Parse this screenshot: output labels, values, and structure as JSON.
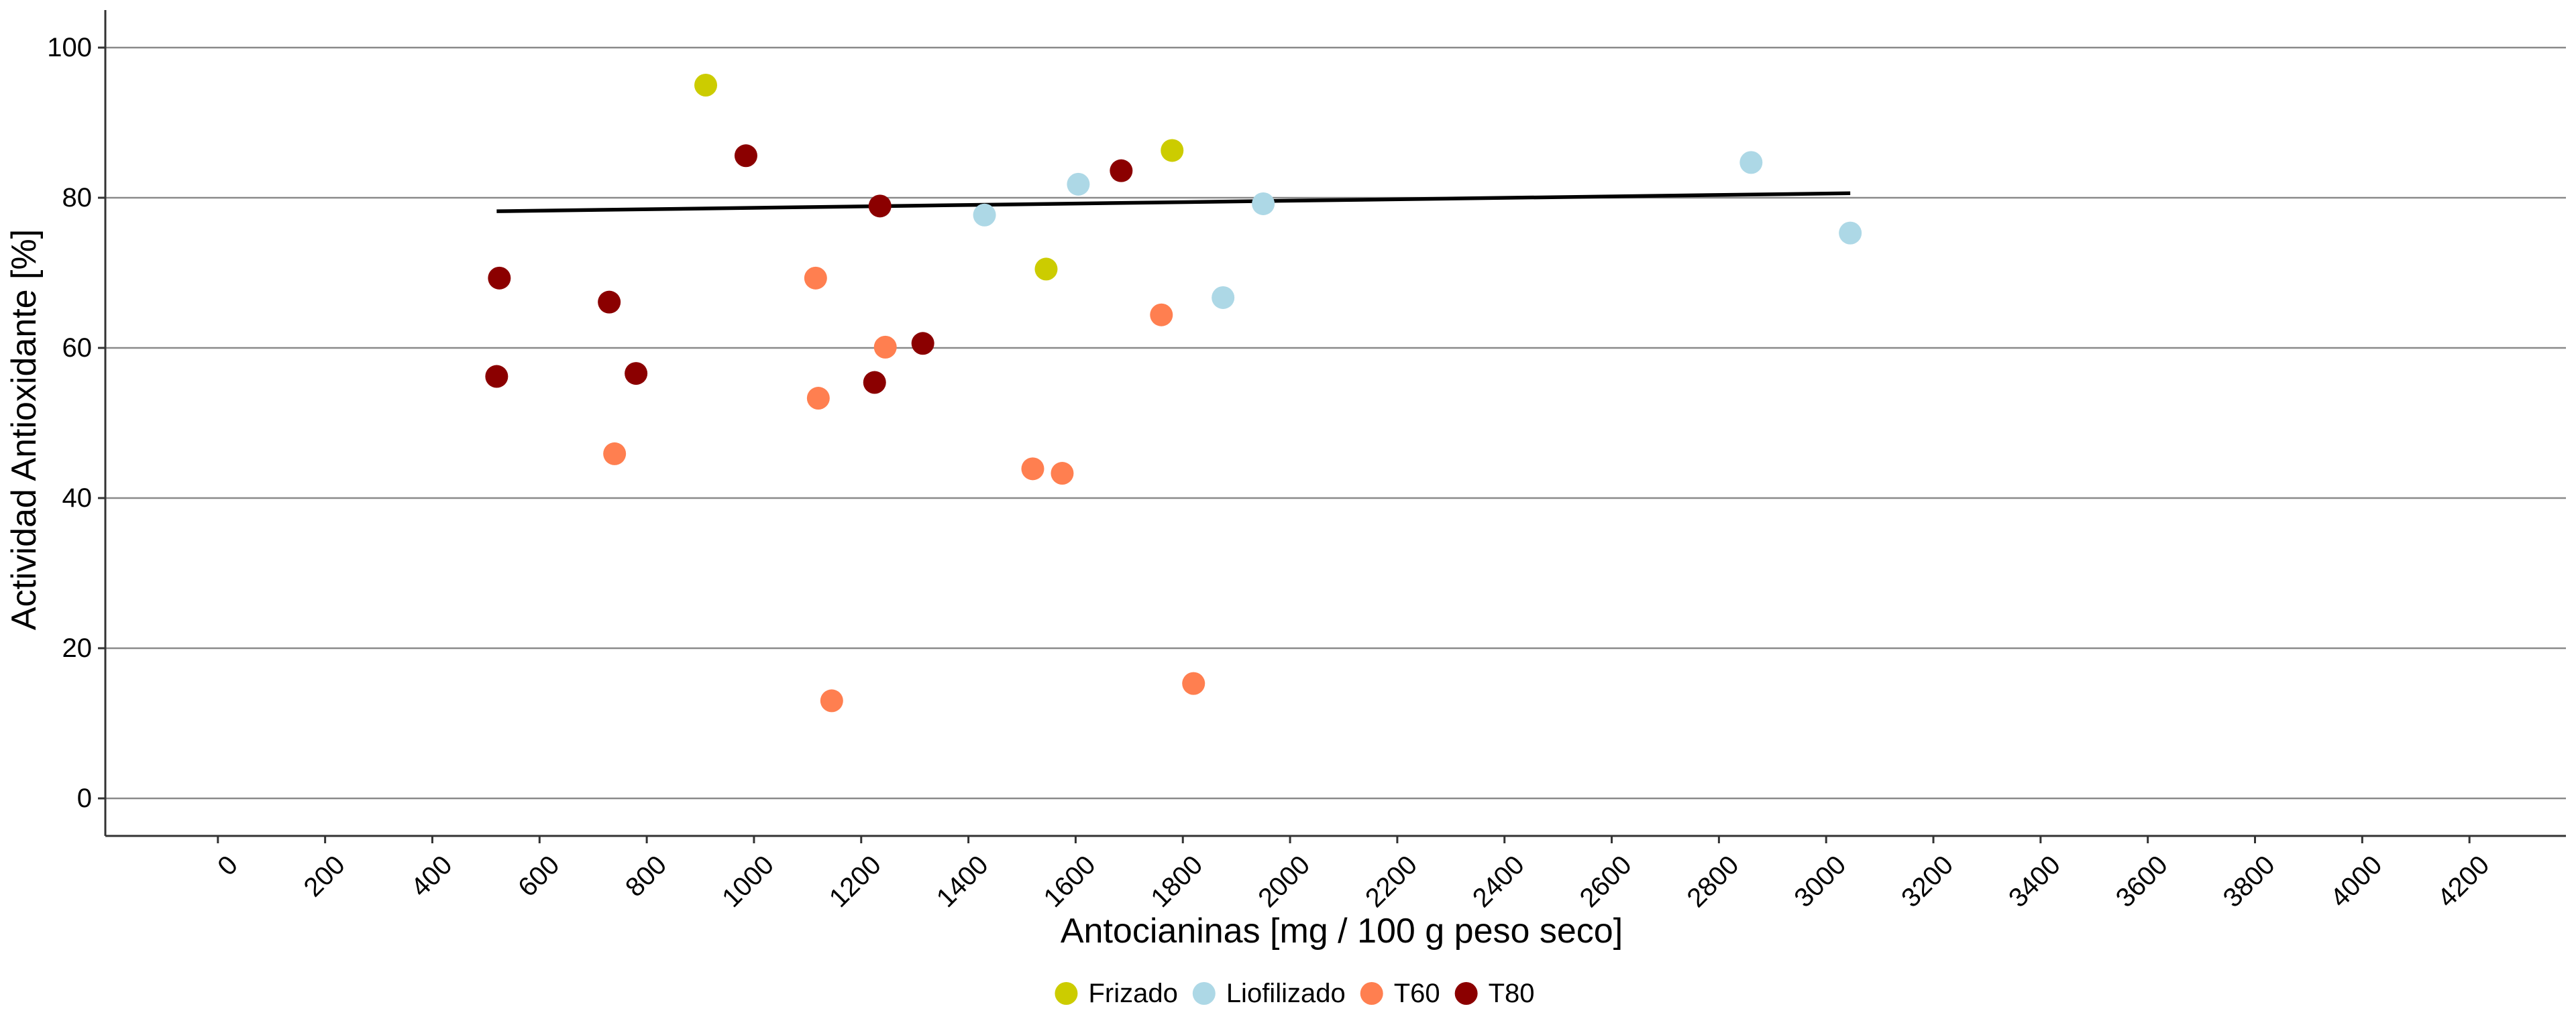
{
  "chart_data": {
    "type": "scatter",
    "xlabel": "Antocianinas [mg / 100 g peso seco]",
    "ylabel": "Actividad Antioxidante [%]",
    "xlim": [
      -210,
      4380
    ],
    "ylim": [
      -5,
      105
    ],
    "x_ticks": [
      0,
      200,
      400,
      600,
      800,
      1000,
      1200,
      1400,
      1600,
      1800,
      2000,
      2200,
      2400,
      2600,
      2800,
      3000,
      3200,
      3400,
      3600,
      3800,
      4000,
      4200
    ],
    "x_tick_labels": [
      "0",
      "200",
      "400",
      "600",
      "800",
      "1000",
      "1200",
      "1400",
      "1600",
      "1800",
      "2000",
      "2200",
      "2400",
      "2600",
      "2800",
      "3000",
      "3200",
      "3400",
      "3600",
      "3800",
      "4000",
      "4200"
    ],
    "y_ticks": [
      0,
      20,
      40,
      60,
      80,
      100
    ],
    "y_tick_labels": [
      "0",
      "20",
      "40",
      "60",
      "80",
      "100"
    ],
    "grid": "horizontal major",
    "legend_position": "bottom",
    "series": [
      {
        "name": "Frizado",
        "color": "#CCCC00",
        "points": [
          [
            910,
            95
          ],
          [
            1545,
            70.5
          ],
          [
            1780,
            86.3
          ]
        ]
      },
      {
        "name": "Liofilizado",
        "color": "#ADD8E6",
        "points": [
          [
            1430,
            77.7
          ],
          [
            1605,
            81.8
          ],
          [
            1875,
            66.7
          ],
          [
            1950,
            79.2
          ],
          [
            2860,
            84.7
          ],
          [
            3045,
            75.3
          ]
        ]
      },
      {
        "name": "T60",
        "color": "#FF7F50",
        "points": [
          [
            740,
            45.9
          ],
          [
            1115,
            69.3
          ],
          [
            1120,
            53.3
          ],
          [
            1145,
            13
          ],
          [
            1245,
            60.1
          ],
          [
            1520,
            43.9
          ],
          [
            1575,
            43.3
          ],
          [
            1760,
            64.4
          ],
          [
            1820,
            15.3
          ]
        ]
      },
      {
        "name": "T80",
        "color": "#8B0000",
        "points": [
          [
            520,
            56.2
          ],
          [
            525,
            69.3
          ],
          [
            730,
            66.1
          ],
          [
            780,
            56.6
          ],
          [
            985,
            85.6
          ],
          [
            1225,
            55.4
          ],
          [
            1235,
            78.9
          ],
          [
            1315,
            60.6
          ],
          [
            1685,
            83.6
          ]
        ]
      }
    ],
    "trend_line": {
      "color": "#000000",
      "points": [
        [
          520,
          78.2
        ],
        [
          3045,
          80.6
        ]
      ]
    }
  }
}
